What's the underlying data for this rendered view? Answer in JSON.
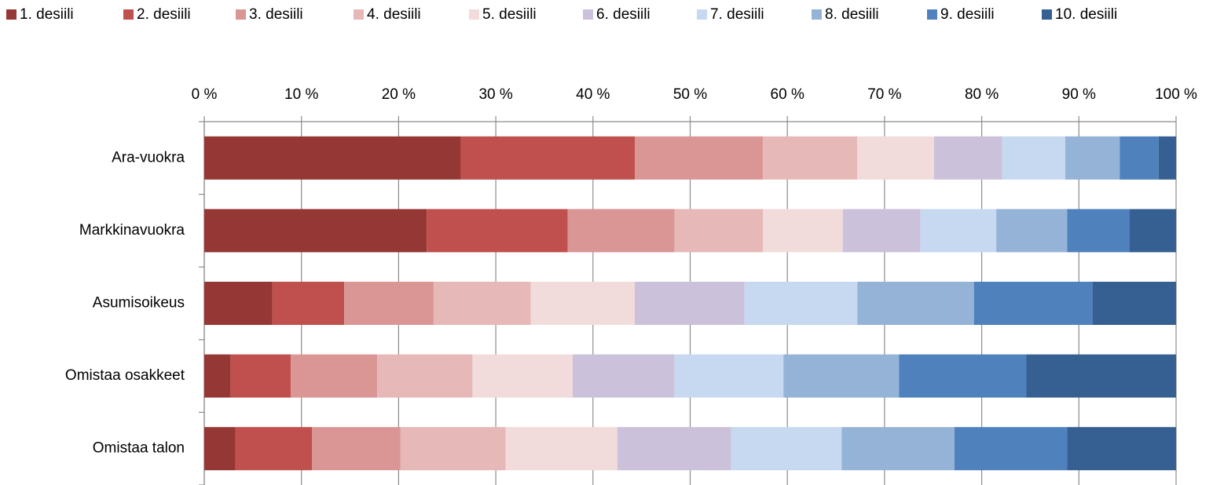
{
  "chart_data": {
    "type": "stacked-bar-horizontal",
    "categories": [
      "Ara-vuokra",
      "Markkinavuokra",
      "Asumisoikeus",
      "Omistaa osakkeet",
      "Omistaa talon"
    ],
    "series": [
      {
        "name": "1. desiili",
        "color": "#953735",
        "values": [
          26.4,
          22.9,
          7.0,
          2.7,
          3.2
        ]
      },
      {
        "name": "2. desiili",
        "color": "#c0504d",
        "values": [
          17.9,
          14.5,
          7.4,
          6.2,
          7.9
        ]
      },
      {
        "name": "3. desiili",
        "color": "#d99694",
        "values": [
          13.2,
          11.0,
          9.2,
          8.9,
          9.1
        ]
      },
      {
        "name": "4. desiili",
        "color": "#e6b9b8",
        "values": [
          9.7,
          9.1,
          10.0,
          9.8,
          10.8
        ]
      },
      {
        "name": "5. desiili",
        "color": "#f2dcdb",
        "values": [
          7.9,
          8.2,
          10.7,
          10.3,
          11.5
        ]
      },
      {
        "name": "6. desiili",
        "color": "#ccc1da",
        "values": [
          7.0,
          8.0,
          11.3,
          10.5,
          11.7
        ]
      },
      {
        "name": "7. desiili",
        "color": "#c6d9f1",
        "values": [
          6.5,
          7.8,
          11.6,
          11.2,
          11.4
        ]
      },
      {
        "name": "8. desiili",
        "color": "#95b3d7",
        "values": [
          5.6,
          7.3,
          12.0,
          11.9,
          11.6
        ]
      },
      {
        "name": "9. desiili",
        "color": "#4f81bd",
        "values": [
          4.0,
          6.4,
          12.2,
          13.1,
          11.6
        ]
      },
      {
        "name": "10. desiili",
        "color": "#376092",
        "values": [
          1.8,
          4.8,
          8.6,
          15.4,
          11.2
        ]
      }
    ],
    "xlim": [
      0,
      100
    ],
    "xticks": [
      {
        "value": 0,
        "label": "0 %"
      },
      {
        "value": 10,
        "label": "10 %"
      },
      {
        "value": 20,
        "label": "20 %"
      },
      {
        "value": 30,
        "label": "30 %"
      },
      {
        "value": 40,
        "label": "40 %"
      },
      {
        "value": 50,
        "label": "50 %"
      },
      {
        "value": 60,
        "label": "60 %"
      },
      {
        "value": 70,
        "label": "70 %"
      },
      {
        "value": 80,
        "label": "80 %"
      },
      {
        "value": 90,
        "label": "90 %"
      },
      {
        "value": 100,
        "label": "100 %"
      }
    ],
    "grid": true,
    "legend": "top"
  }
}
